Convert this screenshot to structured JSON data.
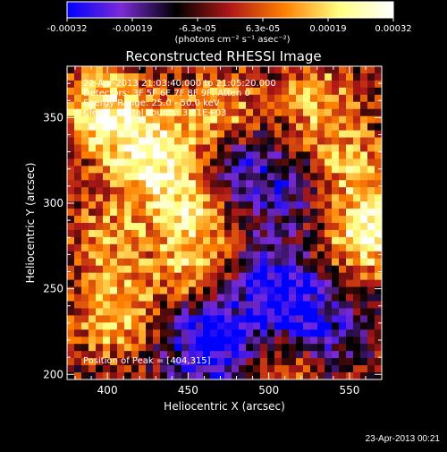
{
  "colorbar": {
    "tick_labels": [
      "-0.00032",
      "-0.00019",
      "-6.3e-05",
      "6.3e-05",
      "0.00019",
      "0.00032"
    ],
    "unit_label": "(photons cm⁻² s⁻¹ asec⁻²)",
    "colors": [
      "#0000ff",
      "#7a2bd6",
      "#000000",
      "#b01818",
      "#ff8000",
      "#ffff80",
      "#ffffff"
    ]
  },
  "image_title": "Reconstructed RHESSI Image",
  "annotations": {
    "line1": "22-Apr-2013 21:03:40.000 to 21:05:20.000",
    "line2": "Detectors: 3F 5F 6F 7F 8F 9F, Atten 0",
    "line3": "Energy Range: 25.0 - 50.0 keV",
    "line4": "Clean     Total counts: 3.21E+03",
    "peak": "Position of Peak = [404,315]"
  },
  "footer": "23-Apr-2013 00:21",
  "chart_data": {
    "type": "heatmap",
    "title": "Reconstructed RHESSI Image",
    "xlabel": "Heliocentric X (arcsec)",
    "ylabel": "Heliocentric Y (arcsec)",
    "xlim": [
      375,
      570
    ],
    "ylim": [
      197,
      380
    ],
    "xticks": [
      400,
      450,
      500,
      550
    ],
    "yticks": [
      200,
      250,
      300,
      350
    ],
    "peak_position": [
      404,
      315
    ],
    "colorbar_range": [
      -0.00032,
      0.00032
    ],
    "bright_regions": [
      {
        "x": 425,
        "y": 330,
        "level": 0.95
      },
      {
        "x": 450,
        "y": 300,
        "level": 0.8
      },
      {
        "x": 455,
        "y": 260,
        "level": 0.7
      },
      {
        "x": 400,
        "y": 280,
        "level": 0.5
      },
      {
        "x": 560,
        "y": 280,
        "level": 0.9
      },
      {
        "x": 545,
        "y": 320,
        "level": 0.7
      },
      {
        "x": 405,
        "y": 235,
        "level": 0.75
      },
      {
        "x": 395,
        "y": 355,
        "level": 0.85
      },
      {
        "x": 530,
        "y": 360,
        "level": 0.6
      },
      {
        "x": 510,
        "y": 205,
        "level": 0.5
      },
      {
        "x": 470,
        "y": 350,
        "level": 0.7
      }
    ],
    "dark_regions": [
      {
        "x": 480,
        "y": 320,
        "level": -0.7
      },
      {
        "x": 500,
        "y": 250,
        "level": -0.85
      },
      {
        "x": 470,
        "y": 215,
        "level": -0.6
      },
      {
        "x": 520,
        "y": 310,
        "level": -0.5
      },
      {
        "x": 530,
        "y": 230,
        "level": -0.7
      },
      {
        "x": 455,
        "y": 225,
        "level": -0.55
      }
    ]
  }
}
